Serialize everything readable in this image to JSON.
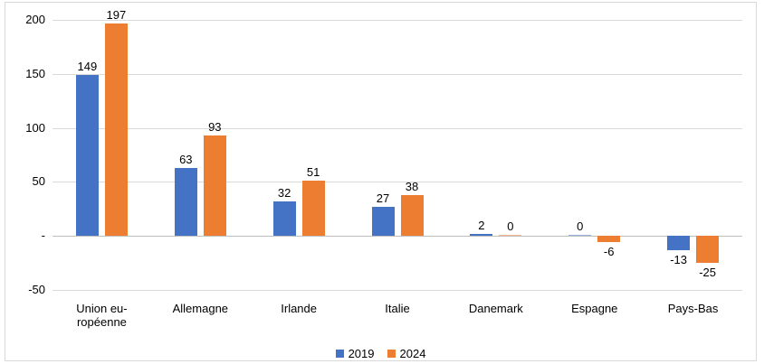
{
  "chart_data": {
    "type": "bar",
    "title": "",
    "xlabel": "",
    "ylabel": "",
    "categories": [
      "Union européenne",
      "Allemagne",
      "Irlande",
      "Italie",
      "Danemark",
      "Espagne",
      "Pays-Bas"
    ],
    "category_display": [
      [
        "Union eu-",
        "ropéenne"
      ],
      [
        "Allemagne"
      ],
      [
        "Irlande"
      ],
      [
        "Italie"
      ],
      [
        "Danemark"
      ],
      [
        "Espagne"
      ],
      [
        "Pays-Bas"
      ]
    ],
    "series": [
      {
        "name": "2019",
        "color": "#4472C4",
        "values": [
          149,
          63,
          32,
          27,
          2,
          0,
          -13
        ]
      },
      {
        "name": "2024",
        "color": "#ED7D31",
        "values": [
          197,
          93,
          51,
          38,
          0,
          -6,
          -25
        ]
      }
    ],
    "data_labels": [
      [
        "149",
        "63",
        "32",
        "27",
        "2",
        "0",
        "-13"
      ],
      [
        "197",
        "93",
        "51",
        "38",
        "0",
        "-6",
        "-25"
      ]
    ],
    "ylim": [
      -50,
      200
    ],
    "yticks": {
      "values": [
        200,
        150,
        100,
        50,
        0,
        -50
      ],
      "labels": [
        "200",
        "150",
        "100",
        "50",
        "-",
        "-50"
      ]
    },
    "grid": true,
    "legend_position": "bottom",
    "colors": {
      "gridline": "#D9D9D9",
      "zero_axis": "#BFBFBF",
      "frame_border": "#D9D9D9",
      "text": "#000000",
      "background": "#FFFFFF"
    }
  }
}
